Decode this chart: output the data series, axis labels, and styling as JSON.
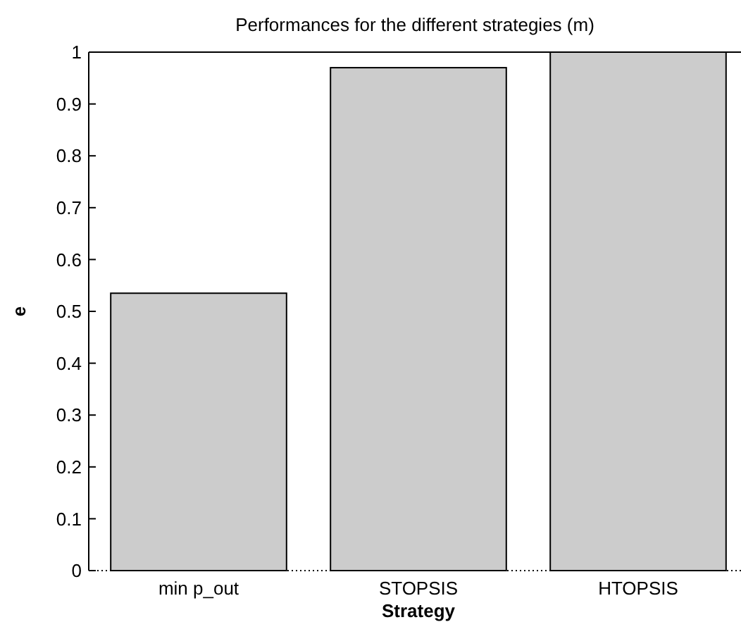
{
  "chart_data": {
    "type": "bar",
    "title": "Performances for the different strategies (m)",
    "xlabel": "Strategy",
    "ylabel": "e",
    "categories": [
      "min p_out",
      "STOPSIS",
      "HTOPSIS"
    ],
    "values": [
      0.535,
      0.97,
      1.0
    ],
    "color": "#cccccc",
    "ylim": [
      0,
      1
    ],
    "yticks": [
      0,
      0.1,
      0.2,
      0.3,
      0.4,
      0.5,
      0.6,
      0.7,
      0.8,
      0.9,
      1
    ],
    "grid": false,
    "ref_lines": [
      {
        "axis": "y",
        "value": 0,
        "line_style": "dotted"
      }
    ]
  }
}
